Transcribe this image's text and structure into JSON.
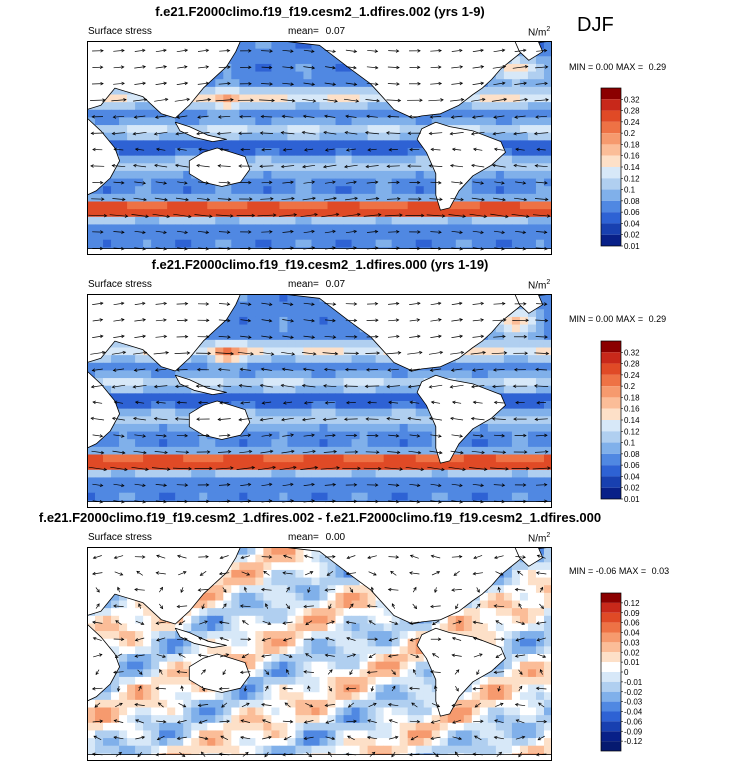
{
  "season": "DJF",
  "chart_data": [
    {
      "type": "heatmap",
      "title": "f.e21.F2000climo.f19_f19.cesm2_1.dfires.002 (yrs 1-9)",
      "variable": "Surface stress",
      "mean_label": "mean=",
      "mean_value": "0.07",
      "units_base": "N/m",
      "units_exp": "2",
      "min_label": "MIN =",
      "min_value": "0.00",
      "max_label": "MAX =",
      "max_value": "0.29",
      "colorbar_ticks": [
        "0.32",
        "0.28",
        "0.24",
        "0.2",
        "0.18",
        "0.16",
        "0.14",
        "0.12",
        "0.1",
        "0.08",
        "0.06",
        "0.04",
        "0.02",
        "0.01"
      ],
      "colorbar_colors": [
        "#8b0000",
        "#c8281a",
        "#e04a26",
        "#ee7245",
        "#f69a6e",
        "#fbbd98",
        "#fde0c8",
        "#d7e8f8",
        "#b0cff0",
        "#80b0ea",
        "#5088e2",
        "#2e62d4",
        "#1840b0",
        "#082088"
      ],
      "field_kind": "absolute"
    },
    {
      "type": "heatmap",
      "title": "f.e21.F2000climo.f19_f19.cesm2_1.dfires.000 (yrs 1-19)",
      "variable": "Surface stress",
      "mean_label": "mean=",
      "mean_value": "0.07",
      "units_base": "N/m",
      "units_exp": "2",
      "min_label": "MIN =",
      "min_value": "0.00",
      "max_label": "MAX =",
      "max_value": "0.29",
      "colorbar_ticks": [
        "0.32",
        "0.28",
        "0.24",
        "0.2",
        "0.18",
        "0.16",
        "0.14",
        "0.12",
        "0.1",
        "0.08",
        "0.06",
        "0.04",
        "0.02",
        "0.01"
      ],
      "colorbar_colors": [
        "#8b0000",
        "#c8281a",
        "#e04a26",
        "#ee7245",
        "#f69a6e",
        "#fbbd98",
        "#fde0c8",
        "#d7e8f8",
        "#b0cff0",
        "#80b0ea",
        "#5088e2",
        "#2e62d4",
        "#1840b0",
        "#082088"
      ],
      "field_kind": "absolute"
    },
    {
      "type": "heatmap",
      "title": "f.e21.F2000climo.f19_f19.cesm2_1.dfires.002 - f.e21.F2000climo.f19_f19.cesm2_1.dfires.000",
      "variable": "Surface stress",
      "mean_label": "mean=",
      "mean_value": "0.00",
      "units_base": "N/m",
      "units_exp": "2",
      "min_label": "MIN =",
      "min_value": "-0.06",
      "max_label": "MAX =",
      "max_value": "0.03",
      "colorbar_ticks": [
        "0.12",
        "0.09",
        "0.06",
        "0.04",
        "0.03",
        "0.02",
        "0.01",
        "0",
        "-0.01",
        "-0.02",
        "-0.03",
        "-0.04",
        "-0.06",
        "-0.09",
        "-0.12"
      ],
      "colorbar_colors": [
        "#8b0000",
        "#c8281a",
        "#e04a26",
        "#ee7245",
        "#f69a6e",
        "#fbbd98",
        "#fde0c8",
        "#ffffff",
        "#d7e8f8",
        "#b0cff0",
        "#80b0ea",
        "#5088e2",
        "#2e62d4",
        "#1840b0",
        "#082088",
        "#061a70"
      ],
      "field_kind": "difference"
    }
  ]
}
